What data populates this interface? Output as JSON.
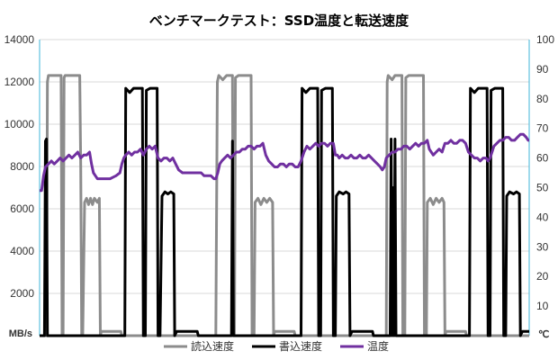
{
  "chart_data": {
    "type": "line",
    "title": "ベンチマークテスト：SSD温度と転送速度",
    "y_left": {
      "unit": "MB/s",
      "min": 0,
      "max": 14000,
      "ticks": [
        2000,
        4000,
        6000,
        8000,
        10000,
        12000,
        14000
      ]
    },
    "y_right": {
      "unit": "℃",
      "min": 0,
      "max": 100,
      "ticks": [
        10,
        20,
        30,
        40,
        50,
        60,
        70,
        80,
        90,
        100
      ]
    },
    "x": {
      "min": 0,
      "max": 1000,
      "labels_shown": false
    },
    "grid": "horizontal",
    "legend_position": "bottom",
    "series": [
      {
        "name": "読込速度",
        "axis": "left",
        "color": "#8c8c8c",
        "points": [
          [
            0,
            0
          ],
          [
            14,
            0
          ],
          [
            16,
            12000
          ],
          [
            18,
            12300
          ],
          [
            44,
            12300
          ],
          [
            46,
            0
          ],
          [
            48,
            0
          ],
          [
            50,
            12200
          ],
          [
            52,
            12300
          ],
          [
            82,
            12300
          ],
          [
            84,
            8000
          ],
          [
            86,
            0
          ],
          [
            88,
            0
          ],
          [
            92,
            6300
          ],
          [
            96,
            6500
          ],
          [
            100,
            6200
          ],
          [
            104,
            6500
          ],
          [
            108,
            6200
          ],
          [
            112,
            6500
          ],
          [
            118,
            6300
          ],
          [
            122,
            6500
          ],
          [
            124,
            0
          ],
          [
            126,
            200
          ],
          [
            166,
            200
          ],
          [
            168,
            0
          ],
          [
            360,
            0
          ],
          [
            363,
            12000
          ],
          [
            366,
            12300
          ],
          [
            374,
            12100
          ],
          [
            382,
            12300
          ],
          [
            394,
            12300
          ],
          [
            396,
            0
          ],
          [
            398,
            0
          ],
          [
            400,
            12200
          ],
          [
            406,
            12300
          ],
          [
            432,
            12300
          ],
          [
            434,
            0
          ],
          [
            438,
            0
          ],
          [
            440,
            6300
          ],
          [
            446,
            6500
          ],
          [
            452,
            6200
          ],
          [
            458,
            6500
          ],
          [
            464,
            6300
          ],
          [
            470,
            6500
          ],
          [
            476,
            6300
          ],
          [
            478,
            0
          ],
          [
            480,
            200
          ],
          [
            520,
            200
          ],
          [
            522,
            0
          ],
          [
            708,
            0
          ],
          [
            710,
            12000
          ],
          [
            712,
            12300
          ],
          [
            720,
            12100
          ],
          [
            726,
            12300
          ],
          [
            740,
            12300
          ],
          [
            742,
            0
          ],
          [
            746,
            0
          ],
          [
            748,
            12200
          ],
          [
            754,
            12300
          ],
          [
            784,
            12300
          ],
          [
            786,
            0
          ],
          [
            790,
            0
          ],
          [
            792,
            6300
          ],
          [
            798,
            6500
          ],
          [
            804,
            6200
          ],
          [
            810,
            6500
          ],
          [
            816,
            6300
          ],
          [
            822,
            6500
          ],
          [
            826,
            6300
          ],
          [
            828,
            0
          ],
          [
            830,
            200
          ],
          [
            870,
            200
          ],
          [
            872,
            0
          ],
          [
            1000,
            0
          ]
        ]
      },
      {
        "name": "書込速度",
        "axis": "left",
        "color": "#000000",
        "points": [
          [
            0,
            0
          ],
          [
            10,
            0
          ],
          [
            12,
            9200
          ],
          [
            14,
            9300
          ],
          [
            16,
            0
          ],
          [
            174,
            0
          ],
          [
            176,
            11700
          ],
          [
            184,
            11500
          ],
          [
            192,
            11700
          ],
          [
            210,
            11700
          ],
          [
            212,
            0
          ],
          [
            216,
            0
          ],
          [
            218,
            11600
          ],
          [
            226,
            11700
          ],
          [
            240,
            11700
          ],
          [
            242,
            0
          ],
          [
            246,
            0
          ],
          [
            250,
            6600
          ],
          [
            256,
            6800
          ],
          [
            262,
            6700
          ],
          [
            268,
            6800
          ],
          [
            274,
            6700
          ],
          [
            276,
            0
          ],
          [
            280,
            200
          ],
          [
            322,
            200
          ],
          [
            324,
            0
          ],
          [
            392,
            0
          ],
          [
            394,
            9200
          ],
          [
            396,
            0
          ],
          [
            534,
            0
          ],
          [
            536,
            11700
          ],
          [
            544,
            11500
          ],
          [
            552,
            11700
          ],
          [
            568,
            11700
          ],
          [
            570,
            0
          ],
          [
            574,
            0
          ],
          [
            576,
            11600
          ],
          [
            584,
            11700
          ],
          [
            598,
            11700
          ],
          [
            600,
            0
          ],
          [
            604,
            0
          ],
          [
            606,
            6600
          ],
          [
            612,
            6800
          ],
          [
            620,
            6700
          ],
          [
            626,
            6800
          ],
          [
            632,
            6700
          ],
          [
            634,
            0
          ],
          [
            638,
            200
          ],
          [
            680,
            200
          ],
          [
            682,
            0
          ],
          [
            716,
            0
          ],
          [
            718,
            9300
          ],
          [
            720,
            0
          ],
          [
            722,
            7000
          ],
          [
            724,
            0
          ],
          [
            726,
            9300
          ],
          [
            728,
            0
          ],
          [
            878,
            0
          ],
          [
            880,
            11700
          ],
          [
            888,
            11500
          ],
          [
            896,
            11700
          ],
          [
            914,
            11700
          ],
          [
            916,
            0
          ],
          [
            920,
            0
          ],
          [
            922,
            11600
          ],
          [
            930,
            11700
          ],
          [
            946,
            11700
          ],
          [
            948,
            0
          ],
          [
            952,
            0
          ],
          [
            954,
            6600
          ],
          [
            960,
            6800
          ],
          [
            968,
            6700
          ],
          [
            974,
            6800
          ],
          [
            980,
            6700
          ],
          [
            982,
            0
          ],
          [
            986,
            200
          ],
          [
            1000,
            200
          ]
        ]
      },
      {
        "name": "温度",
        "axis": "right",
        "color": "#7030a0",
        "points": [
          [
            0,
            49
          ],
          [
            4,
            49
          ],
          [
            8,
            54
          ],
          [
            12,
            57
          ],
          [
            18,
            58
          ],
          [
            24,
            59
          ],
          [
            30,
            58
          ],
          [
            36,
            59
          ],
          [
            42,
            60
          ],
          [
            48,
            59
          ],
          [
            54,
            60
          ],
          [
            60,
            61
          ],
          [
            66,
            60
          ],
          [
            72,
            61
          ],
          [
            78,
            62
          ],
          [
            84,
            60
          ],
          [
            90,
            61
          ],
          [
            96,
            61
          ],
          [
            102,
            62
          ],
          [
            106,
            58
          ],
          [
            110,
            55
          ],
          [
            114,
            54
          ],
          [
            118,
            53
          ],
          [
            124,
            53
          ],
          [
            144,
            53
          ],
          [
            156,
            54
          ],
          [
            164,
            55
          ],
          [
            168,
            58
          ],
          [
            172,
            60
          ],
          [
            176,
            61
          ],
          [
            182,
            62
          ],
          [
            188,
            61
          ],
          [
            194,
            62
          ],
          [
            200,
            62
          ],
          [
            206,
            63
          ],
          [
            212,
            61
          ],
          [
            218,
            63
          ],
          [
            224,
            64
          ],
          [
            230,
            63
          ],
          [
            236,
            64
          ],
          [
            242,
            60
          ],
          [
            248,
            59
          ],
          [
            254,
            60
          ],
          [
            260,
            60
          ],
          [
            266,
            59
          ],
          [
            272,
            60
          ],
          [
            278,
            58
          ],
          [
            284,
            56
          ],
          [
            292,
            55
          ],
          [
            300,
            55
          ],
          [
            310,
            55
          ],
          [
            330,
            55
          ],
          [
            336,
            54
          ],
          [
            342,
            54
          ],
          [
            350,
            54
          ],
          [
            356,
            53
          ],
          [
            360,
            53
          ],
          [
            364,
            55
          ],
          [
            368,
            58
          ],
          [
            372,
            59
          ],
          [
            378,
            60
          ],
          [
            384,
            61
          ],
          [
            390,
            60
          ],
          [
            396,
            61
          ],
          [
            402,
            62
          ],
          [
            408,
            62
          ],
          [
            414,
            63
          ],
          [
            420,
            63
          ],
          [
            426,
            64
          ],
          [
            432,
            64
          ],
          [
            438,
            63
          ],
          [
            444,
            64
          ],
          [
            450,
            64
          ],
          [
            456,
            65
          ],
          [
            462,
            61
          ],
          [
            468,
            59
          ],
          [
            474,
            58
          ],
          [
            480,
            57
          ],
          [
            486,
            57
          ],
          [
            492,
            58
          ],
          [
            498,
            58
          ],
          [
            504,
            57
          ],
          [
            510,
            58
          ],
          [
            516,
            58
          ],
          [
            522,
            57
          ],
          [
            528,
            57
          ],
          [
            534,
            59
          ],
          [
            540,
            62
          ],
          [
            546,
            64
          ],
          [
            552,
            63
          ],
          [
            558,
            64
          ],
          [
            564,
            65
          ],
          [
            570,
            64
          ],
          [
            576,
            65
          ],
          [
            582,
            65
          ],
          [
            588,
            64
          ],
          [
            594,
            65
          ],
          [
            600,
            65
          ],
          [
            604,
            61
          ],
          [
            608,
            61
          ],
          [
            612,
            60
          ],
          [
            618,
            61
          ],
          [
            624,
            60
          ],
          [
            630,
            60
          ],
          [
            636,
            61
          ],
          [
            642,
            60
          ],
          [
            648,
            60
          ],
          [
            654,
            61
          ],
          [
            660,
            60
          ],
          [
            666,
            60
          ],
          [
            672,
            61
          ],
          [
            678,
            60
          ],
          [
            684,
            59
          ],
          [
            690,
            58
          ],
          [
            696,
            57
          ],
          [
            700,
            56
          ],
          [
            704,
            57
          ],
          [
            708,
            60
          ],
          [
            714,
            61
          ],
          [
            720,
            62
          ],
          [
            726,
            62
          ],
          [
            732,
            63
          ],
          [
            738,
            63
          ],
          [
            744,
            64
          ],
          [
            750,
            64
          ],
          [
            756,
            63
          ],
          [
            762,
            64
          ],
          [
            768,
            65
          ],
          [
            774,
            64
          ],
          [
            780,
            65
          ],
          [
            786,
            65
          ],
          [
            792,
            66
          ],
          [
            796,
            63
          ],
          [
            800,
            62
          ],
          [
            804,
            61
          ],
          [
            810,
            62
          ],
          [
            816,
            63
          ],
          [
            822,
            62
          ],
          [
            828,
            65
          ],
          [
            834,
            65
          ],
          [
            840,
            66
          ],
          [
            846,
            65
          ],
          [
            852,
            65
          ],
          [
            858,
            66
          ],
          [
            864,
            66
          ],
          [
            870,
            65
          ],
          [
            876,
            62
          ],
          [
            882,
            61
          ],
          [
            888,
            60
          ],
          [
            894,
            60
          ],
          [
            900,
            59
          ],
          [
            906,
            60
          ],
          [
            912,
            60
          ],
          [
            916,
            59
          ],
          [
            920,
            60
          ],
          [
            924,
            62
          ],
          [
            928,
            64
          ],
          [
            934,
            65
          ],
          [
            940,
            66
          ],
          [
            946,
            66
          ],
          [
            952,
            67
          ],
          [
            958,
            67
          ],
          [
            964,
            66
          ],
          [
            970,
            66
          ],
          [
            976,
            67
          ],
          [
            982,
            68
          ],
          [
            988,
            68
          ],
          [
            994,
            67
          ],
          [
            998,
            66
          ],
          [
            1000,
            66
          ]
        ]
      }
    ]
  }
}
